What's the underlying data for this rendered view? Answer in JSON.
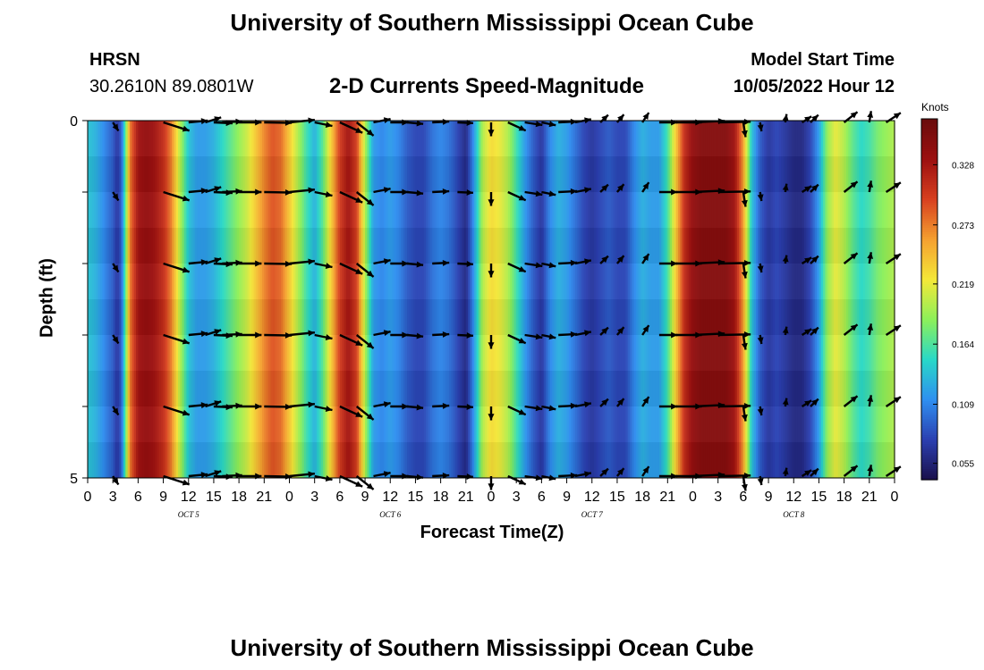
{
  "header": {
    "title": "University of Southern Mississippi Ocean Cube",
    "station": "HRSN",
    "coords": "30.2610N  89.0801W",
    "product": "2-D Currents Speed-Magnitude",
    "model_label": "Model Start Time",
    "model_time": "10/05/2022 Hour 12"
  },
  "footer": {
    "title": "University of Southern Mississippi Ocean Cube"
  },
  "chart_data": {
    "type": "heatmap",
    "title": "2-D Currents Speed-Magnitude",
    "xlabel": "Forecast Time(Z)",
    "ylabel": "Depth (ft)",
    "x_tick_labels": [
      "0",
      "3",
      "6",
      "9",
      "12",
      "15",
      "18",
      "21",
      "0",
      "3",
      "6",
      "9",
      "12",
      "15",
      "18",
      "21",
      "0",
      "3",
      "6",
      "9",
      "12",
      "15",
      "18",
      "21",
      "0",
      "3",
      "6",
      "9",
      "12",
      "15",
      "18",
      "21",
      "0"
    ],
    "x_range_hours": [
      0,
      96
    ],
    "day_labels": [
      {
        "label": "OCT 5",
        "hour": 12
      },
      {
        "label": "OCT 6",
        "hour": 36
      },
      {
        "label": "OCT 7",
        "hour": 60
      },
      {
        "label": "OCT 8",
        "hour": 84
      }
    ],
    "y_tick_labels": [
      "0",
      "5"
    ],
    "ylim": [
      0,
      5
    ],
    "colorbar": {
      "unit": "Knots",
      "ticks": [
        0.055,
        0.109,
        0.164,
        0.219,
        0.273,
        0.328
      ],
      "range": [
        0.04,
        0.37
      ],
      "colors": [
        "#1a0f4a",
        "#2b3fb0",
        "#2f8ff0",
        "#28d8c8",
        "#8cf05a",
        "#f4e838",
        "#f5a030",
        "#d84020",
        "#9c1010",
        "#6a0c0c"
      ]
    },
    "speed_knots_by_hour": [
      [
        0,
        0.14
      ],
      [
        1,
        0.13
      ],
      [
        2,
        0.11
      ],
      [
        3,
        0.09
      ],
      [
        3.5,
        0.07
      ],
      [
        4,
        0.09
      ],
      [
        4.5,
        0.17
      ],
      [
        5,
        0.27
      ],
      [
        6,
        0.33
      ],
      [
        7,
        0.34
      ],
      [
        8,
        0.33
      ],
      [
        9,
        0.31
      ],
      [
        10,
        0.27
      ],
      [
        11,
        0.2
      ],
      [
        12,
        0.14
      ],
      [
        13,
        0.12
      ],
      [
        14,
        0.12
      ],
      [
        15,
        0.13
      ],
      [
        16,
        0.15
      ],
      [
        17,
        0.17
      ],
      [
        18,
        0.19
      ],
      [
        19,
        0.21
      ],
      [
        20,
        0.24
      ],
      [
        21,
        0.27
      ],
      [
        22,
        0.29
      ],
      [
        23,
        0.28
      ],
      [
        24,
        0.24
      ],
      [
        25,
        0.2
      ],
      [
        26,
        0.16
      ],
      [
        27,
        0.13
      ],
      [
        28,
        0.17
      ],
      [
        29,
        0.24
      ],
      [
        30,
        0.3
      ],
      [
        31,
        0.33
      ],
      [
        32,
        0.3
      ],
      [
        33,
        0.2
      ],
      [
        34,
        0.12
      ],
      [
        35,
        0.11
      ],
      [
        36,
        0.12
      ],
      [
        37,
        0.11
      ],
      [
        38,
        0.09
      ],
      [
        39,
        0.08
      ],
      [
        40,
        0.08
      ],
      [
        41,
        0.1
      ],
      [
        42,
        0.11
      ],
      [
        43,
        0.1
      ],
      [
        44,
        0.08
      ],
      [
        45,
        0.06
      ],
      [
        46,
        0.12
      ],
      [
        47,
        0.2
      ],
      [
        48,
        0.23
      ],
      [
        49,
        0.22
      ],
      [
        50,
        0.2
      ],
      [
        51,
        0.16
      ],
      [
        52,
        0.12
      ],
      [
        53,
        0.09
      ],
      [
        54,
        0.07
      ],
      [
        55,
        0.11
      ],
      [
        56,
        0.13
      ],
      [
        57,
        0.12
      ],
      [
        58,
        0.1
      ],
      [
        59,
        0.08
      ],
      [
        60,
        0.07
      ],
      [
        61,
        0.08
      ],
      [
        62,
        0.09
      ],
      [
        63,
        0.08
      ],
      [
        64,
        0.08
      ],
      [
        65,
        0.11
      ],
      [
        66,
        0.13
      ],
      [
        67,
        0.12
      ],
      [
        68,
        0.12
      ],
      [
        69,
        0.16
      ],
      [
        70,
        0.24
      ],
      [
        71,
        0.31
      ],
      [
        72,
        0.34
      ],
      [
        73,
        0.35
      ],
      [
        74,
        0.35
      ],
      [
        75,
        0.35
      ],
      [
        76,
        0.35
      ],
      [
        77,
        0.33
      ],
      [
        78,
        0.26
      ],
      [
        79,
        0.14
      ],
      [
        80,
        0.09
      ],
      [
        81,
        0.07
      ],
      [
        82,
        0.08
      ],
      [
        83,
        0.07
      ],
      [
        84,
        0.06
      ],
      [
        85,
        0.06
      ],
      [
        86,
        0.08
      ],
      [
        87,
        0.12
      ],
      [
        88,
        0.19
      ],
      [
        89,
        0.22
      ],
      [
        90,
        0.2
      ],
      [
        91,
        0.17
      ],
      [
        92,
        0.15
      ],
      [
        93,
        0.16
      ],
      [
        94,
        0.18
      ],
      [
        95,
        0.19
      ],
      [
        96,
        0.2
      ]
    ],
    "vector_rows_ft": [
      0,
      1,
      2,
      3,
      4
    ],
    "vector_directions_deg_by_hour": [
      [
        3,
        250
      ],
      [
        9,
        210
      ],
      [
        12,
        170
      ],
      [
        14,
        150
      ],
      [
        15,
        185
      ],
      [
        16,
        175
      ],
      [
        18,
        180
      ],
      [
        21,
        182
      ],
      [
        24,
        170
      ],
      [
        27,
        200
      ],
      [
        30,
        220
      ],
      [
        32,
        235
      ],
      [
        34,
        160
      ],
      [
        36,
        180
      ],
      [
        38,
        190
      ],
      [
        41,
        175
      ],
      [
        44,
        185
      ],
      [
        48,
        270
      ],
      [
        50,
        220
      ],
      [
        52,
        195
      ],
      [
        54,
        200
      ],
      [
        56,
        175
      ],
      [
        58,
        160
      ],
      [
        61,
        120
      ],
      [
        63,
        115
      ],
      [
        66,
        110
      ],
      [
        68,
        180
      ],
      [
        70,
        180
      ],
      [
        72,
        175
      ],
      [
        75,
        178
      ],
      [
        78,
        265
      ],
      [
        80,
        265
      ],
      [
        83,
        95
      ],
      [
        85,
        130
      ],
      [
        86,
        120
      ],
      [
        90,
        125
      ],
      [
        93,
        95
      ],
      [
        95,
        130
      ]
    ]
  }
}
